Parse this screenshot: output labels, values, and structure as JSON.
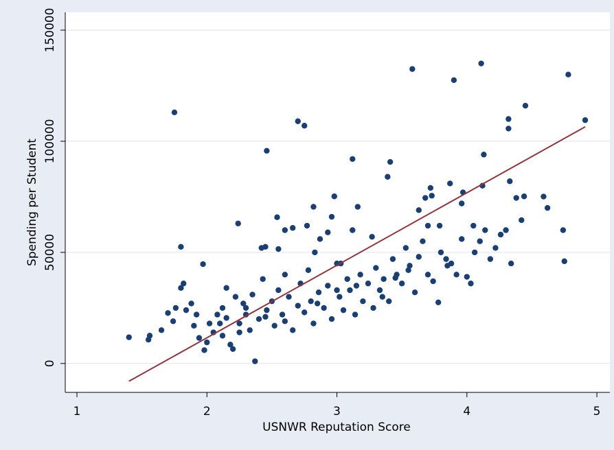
{
  "chart_data": {
    "type": "scatter",
    "xlabel": "USNWR Reputation Score",
    "ylabel": "Spending per Student",
    "xlim": [
      0.91,
      5.1
    ],
    "ylim": [
      -13000,
      158000
    ],
    "xticks": [
      1,
      2,
      3,
      4,
      5
    ],
    "yticks": [
      0,
      50000,
      100000,
      150000
    ],
    "grid": true,
    "color": "#1a3f72",
    "x": [
      1.75,
      2.7,
      2.75,
      2.46,
      3.12,
      3.41,
      3.39,
      3.58,
      3.9,
      4.11,
      4.78,
      4.91,
      4.45,
      4.32,
      4.32,
      4.13,
      4.12,
      3.87,
      3.97,
      3.72,
      3.73,
      3.68,
      3.63,
      3.96,
      4.33,
      4.38,
      4.44,
      4.59,
      4.62,
      4.74,
      4.75,
      4.34,
      4.42,
      2.24,
      1.8,
      1.97,
      2.45,
      2.42,
      2.54,
      2.6,
      2.66,
      2.77,
      2.82,
      2.96,
      2.98,
      3.16,
      3.27,
      2.55,
      2.87,
      2.93,
      3.12,
      3.03,
      2.83,
      1.4,
      1.56,
      1.55,
      1.65,
      1.7,
      1.74,
      1.76,
      1.8,
      1.82,
      1.84,
      1.9,
      1.94,
      1.98,
      2.0,
      2.05,
      2.08,
      2.12,
      2.15,
      2.18,
      2.2,
      2.22,
      2.25,
      2.28,
      2.3,
      2.33,
      2.37,
      2.4,
      2.43,
      2.46,
      2.5,
      2.52,
      2.55,
      2.58,
      2.6,
      2.63,
      2.66,
      2.7,
      2.72,
      2.75,
      2.78,
      2.8,
      2.82,
      2.86,
      2.9,
      2.93,
      2.96,
      3.0,
      3.02,
      3.05,
      3.08,
      3.1,
      3.14,
      3.18,
      3.2,
      3.24,
      3.28,
      3.3,
      3.33,
      3.36,
      3.4,
      3.43,
      3.46,
      3.5,
      3.53,
      3.56,
      3.6,
      3.63,
      3.66,
      3.7,
      3.74,
      3.78,
      3.8,
      3.84,
      3.88,
      3.92,
      3.96,
      4.0,
      4.03,
      4.06,
      4.1,
      4.14,
      4.18,
      4.22,
      4.26,
      4.3,
      4.05,
      3.79,
      3.7,
      3.85,
      2.1,
      2.15,
      2.3,
      2.35,
      2.45,
      2.6,
      2.85,
      3.0,
      3.15,
      3.35,
      3.45,
      3.55,
      1.88,
      1.92,
      2.02,
      2.12,
      2.25
    ],
    "values": [
      113000,
      109000,
      107000,
      95700,
      92000,
      90700,
      84000,
      132500,
      127500,
      135000,
      130000,
      109500,
      116000,
      110000,
      105700,
      94000,
      80000,
      81000,
      77000,
      79000,
      75500,
      74500,
      69000,
      72000,
      82000,
      74500,
      75200,
      75100,
      70000,
      60000,
      46000,
      45000,
      64500,
      63000,
      52500,
      44700,
      52500,
      52000,
      65800,
      60000,
      61000,
      62000,
      70500,
      66000,
      75200,
      70500,
      57000,
      51500,
      56000,
      59000,
      60000,
      45000,
      50000,
      11800,
      12500,
      10700,
      15000,
      22700,
      19000,
      25000,
      34000,
      36000,
      24000,
      17000,
      11500,
      6000,
      9500,
      14000,
      22000,
      25000,
      34000,
      8500,
      6500,
      30000,
      18000,
      27000,
      22000,
      15000,
      1000,
      20000,
      38000,
      24000,
      28000,
      17000,
      33000,
      22000,
      40000,
      30000,
      15000,
      26000,
      36000,
      23000,
      42000,
      28000,
      18000,
      32000,
      25000,
      35000,
      20000,
      45000,
      30000,
      24000,
      38000,
      33000,
      22000,
      40000,
      28000,
      36000,
      25000,
      43000,
      33000,
      38000,
      28000,
      47000,
      40000,
      36000,
      52000,
      44000,
      32000,
      48000,
      55000,
      40000,
      37000,
      27500,
      50000,
      47000,
      45000,
      40000,
      56000,
      39000,
      36000,
      50000,
      55000,
      60000,
      47000,
      52000,
      58000,
      60000,
      62000,
      62000,
      62000,
      44000,
      18000,
      20500,
      25000,
      31000,
      21000,
      19000,
      27000,
      33000,
      35000,
      30000,
      38500,
      42000,
      27000,
      22000,
      18000,
      12500,
      14000
    ],
    "fit": {
      "color": "#90353b",
      "x": [
        1.4,
        4.91
      ],
      "y": [
        -8000,
        106500
      ]
    }
  }
}
